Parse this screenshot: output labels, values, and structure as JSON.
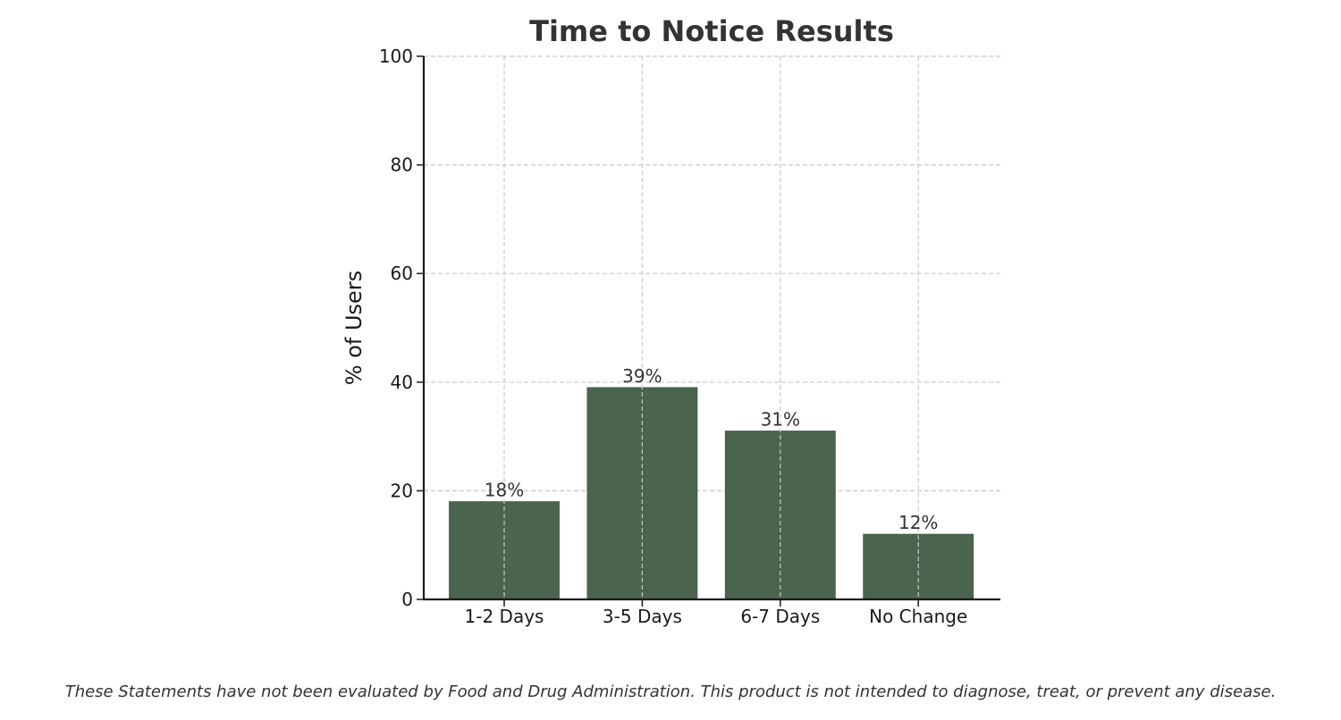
{
  "chart_data": {
    "type": "bar",
    "title": "Time to Notice Results",
    "xlabel": "",
    "ylabel": "% of Users",
    "categories": [
      "1-2 Days",
      "3-5 Days",
      "6-7 Days",
      "No Change"
    ],
    "values": [
      18,
      39,
      31,
      12
    ],
    "value_labels": [
      "18%",
      "39%",
      "31%",
      "12%"
    ],
    "ylim": [
      0,
      100
    ],
    "yticks": [
      "0",
      "20",
      "40",
      "60",
      "80",
      "100"
    ],
    "grid": true,
    "legend": "none",
    "colors": {
      "bar": "#4a644d",
      "text": "#333333",
      "axis": "#1a1a1a",
      "grid": "#c8c8c8"
    }
  },
  "footer": {
    "disclaimer": "These Statements have not been evaluated by Food and Drug Administration. This product is not intended to diagnose, treat, or prevent any disease."
  }
}
